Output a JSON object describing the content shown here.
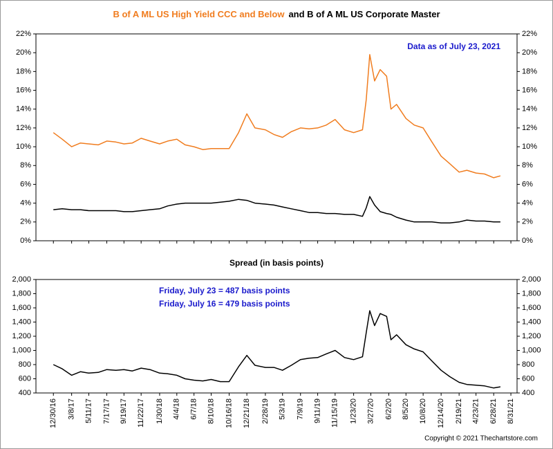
{
  "chart_data": [
    {
      "type": "line",
      "annotation": "Data as of July 23, 2021",
      "x": [
        "12/30/16",
        "2/1/17",
        "3/8/17",
        "4/10/17",
        "5/11/17",
        "6/15/17",
        "7/17/17",
        "8/20/17",
        "9/19/17",
        "10/20/17",
        "11/22/17",
        "12/25/17",
        "1/30/18",
        "3/1/18",
        "4/4/18",
        "5/5/18",
        "6/7/18",
        "7/10/18",
        "8/10/18",
        "9/13/18",
        "10/16/18",
        "11/20/18",
        "12/21/18",
        "1/20/19",
        "2/28/19",
        "4/1/19",
        "5/3/19",
        "6/5/19",
        "7/9/19",
        "8/10/19",
        "9/11/19",
        "10/13/19",
        "11/15/19",
        "12/20/19",
        "1/23/20",
        "2/25/20",
        "3/10/20",
        "3/23/20",
        "4/10/20",
        "5/1/20",
        "5/25/20",
        "6/10/20",
        "7/1/20",
        "8/5/20",
        "9/5/20",
        "10/8/20",
        "11/10/20",
        "12/14/20",
        "1/15/21",
        "2/19/21",
        "3/20/21",
        "4/23/21",
        "5/25/21",
        "6/28/21",
        "7/23/21"
      ],
      "series": [
        {
          "name": "B of A ML US High Yield CCC and Below",
          "color": "#f07c1e",
          "values": [
            11.5,
            10.8,
            10.0,
            10.4,
            10.3,
            10.2,
            10.6,
            10.5,
            10.3,
            10.4,
            10.9,
            10.6,
            10.3,
            10.6,
            10.8,
            10.2,
            10.0,
            9.7,
            9.8,
            9.8,
            9.8,
            11.5,
            13.5,
            12.0,
            11.8,
            11.3,
            11.0,
            11.6,
            12.0,
            11.9,
            12.0,
            12.3,
            12.9,
            11.8,
            11.5,
            11.8,
            15.0,
            19.8,
            17.0,
            18.2,
            17.5,
            14.0,
            14.5,
            13.0,
            12.3,
            12.0,
            10.5,
            9.0,
            8.2,
            7.3,
            7.5,
            7.2,
            7.1,
            6.7,
            6.9
          ]
        },
        {
          "name": "and B of A ML US Corporate Master",
          "color": "#000000",
          "values": [
            3.3,
            3.4,
            3.3,
            3.3,
            3.2,
            3.2,
            3.2,
            3.2,
            3.1,
            3.1,
            3.2,
            3.3,
            3.4,
            3.7,
            3.9,
            4.0,
            4.0,
            4.0,
            4.0,
            4.1,
            4.2,
            4.4,
            4.3,
            4.0,
            3.9,
            3.8,
            3.6,
            3.4,
            3.2,
            3.0,
            3.0,
            2.9,
            2.9,
            2.8,
            2.8,
            2.6,
            3.5,
            4.7,
            3.8,
            3.1,
            2.9,
            2.8,
            2.5,
            2.2,
            2.0,
            2.0,
            2.0,
            1.9,
            1.9,
            2.0,
            2.2,
            2.1,
            2.1,
            2.0,
            2.0
          ]
        }
      ],
      "xlim": [
        "10/26/16",
        "9/23/21"
      ],
      "ylim": [
        0,
        22
      ],
      "yticks": [
        {
          "value": 0,
          "label": "0%"
        },
        {
          "value": 2,
          "label": "2%"
        },
        {
          "value": 4,
          "label": "4%"
        },
        {
          "value": 6,
          "label": "6%"
        },
        {
          "value": 8,
          "label": "8%"
        },
        {
          "value": 10,
          "label": "10%"
        },
        {
          "value": 12,
          "label": "12%"
        },
        {
          "value": 14,
          "label": "14%"
        },
        {
          "value": 16,
          "label": "16%"
        },
        {
          "value": 18,
          "label": "18%"
        },
        {
          "value": 20,
          "label": "20%"
        },
        {
          "value": 22,
          "label": "22%"
        }
      ]
    },
    {
      "type": "line",
      "title": "Spread (in basis points)",
      "annotations": [
        "Friday, July 23 = 487 basis points",
        "Friday, July 16 = 479 basis points"
      ],
      "footer": "Copyright © 2021 Thechartstore.com",
      "x": [
        "12/30/16",
        "2/1/17",
        "3/8/17",
        "4/10/17",
        "5/11/17",
        "6/15/17",
        "7/17/17",
        "8/20/17",
        "9/19/17",
        "10/20/17",
        "11/22/17",
        "12/25/17",
        "1/30/18",
        "3/1/18",
        "4/4/18",
        "5/5/18",
        "6/7/18",
        "7/10/18",
        "8/10/18",
        "9/13/18",
        "10/16/18",
        "11/20/18",
        "12/21/18",
        "1/20/19",
        "2/28/19",
        "4/1/19",
        "5/3/19",
        "6/5/19",
        "7/9/19",
        "8/10/19",
        "9/11/19",
        "10/13/19",
        "11/15/19",
        "12/20/19",
        "1/23/20",
        "2/25/20",
        "3/10/20",
        "3/23/20",
        "4/10/20",
        "5/1/20",
        "5/25/20",
        "6/10/20",
        "7/1/20",
        "8/5/20",
        "9/5/20",
        "10/8/20",
        "11/10/20",
        "12/14/20",
        "1/15/21",
        "2/19/21",
        "3/20/21",
        "4/23/21",
        "5/25/21",
        "6/28/21",
        "7/23/21"
      ],
      "color": "#000000",
      "values": [
        800,
        740,
        650,
        700,
        680,
        690,
        730,
        720,
        730,
        710,
        750,
        730,
        680,
        670,
        650,
        600,
        580,
        570,
        590,
        560,
        560,
        770,
        930,
        790,
        760,
        760,
        720,
        790,
        870,
        890,
        900,
        950,
        1000,
        900,
        870,
        910,
        1250,
        1560,
        1350,
        1520,
        1480,
        1150,
        1220,
        1080,
        1020,
        980,
        850,
        720,
        630,
        550,
        520,
        510,
        500,
        470,
        487
      ],
      "xlim": [
        "10/26/16",
        "9/23/21"
      ],
      "xticks": [
        "12/30/16",
        "3/8/17",
        "5/11/17",
        "7/17/17",
        "9/19/17",
        "11/22/17",
        "1/30/18",
        "4/4/18",
        "6/7/18",
        "8/10/18",
        "10/16/18",
        "12/21/18",
        "2/28/19",
        "5/3/19",
        "7/9/19",
        "9/11/19",
        "11/15/19",
        "1/23/20",
        "3/27/20",
        "6/2/20",
        "8/5/20",
        "10/8/20",
        "12/14/20",
        "2/19/21",
        "4/23/21",
        "6/28/21",
        "8/31/21"
      ],
      "ylim": [
        400,
        2000
      ],
      "yticks": [
        400,
        600,
        800,
        {
          "value": 1000,
          "label": "1,000"
        },
        {
          "value": 1200,
          "label": "1,200"
        },
        {
          "value": 1400,
          "label": "1,400"
        },
        {
          "value": 1600,
          "label": "1,600"
        },
        {
          "value": 1800,
          "label": "1,800"
        },
        {
          "value": 2000,
          "label": "2,000"
        }
      ]
    }
  ]
}
